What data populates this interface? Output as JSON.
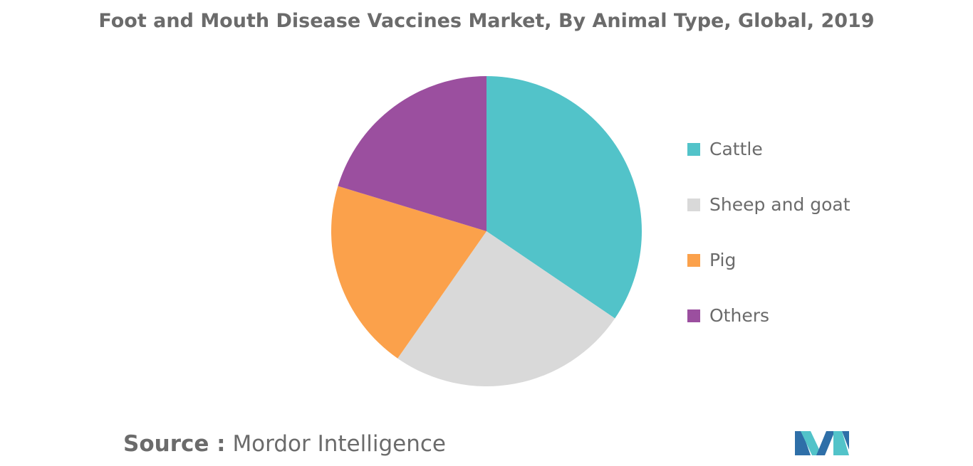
{
  "chart_data": {
    "type": "pie",
    "title": "Foot and Mouth Disease Vaccines Market, By Animal Type, Global, 2019",
    "categories": [
      "Cattle",
      "Sheep and goat",
      "Pig",
      "Others"
    ],
    "values": [
      34.5,
      25.2,
      20.0,
      20.3
    ],
    "colors": [
      "#52c3c9",
      "#d9d9d9",
      "#fba14b",
      "#9b4f9f"
    ],
    "legend": "right"
  },
  "source": {
    "label": "Source :",
    "text": "Mordor Intelligence"
  },
  "logo": {
    "icon": "mordor-intelligence-logo",
    "colors": [
      "#2e6fa8",
      "#52c3c9"
    ]
  }
}
